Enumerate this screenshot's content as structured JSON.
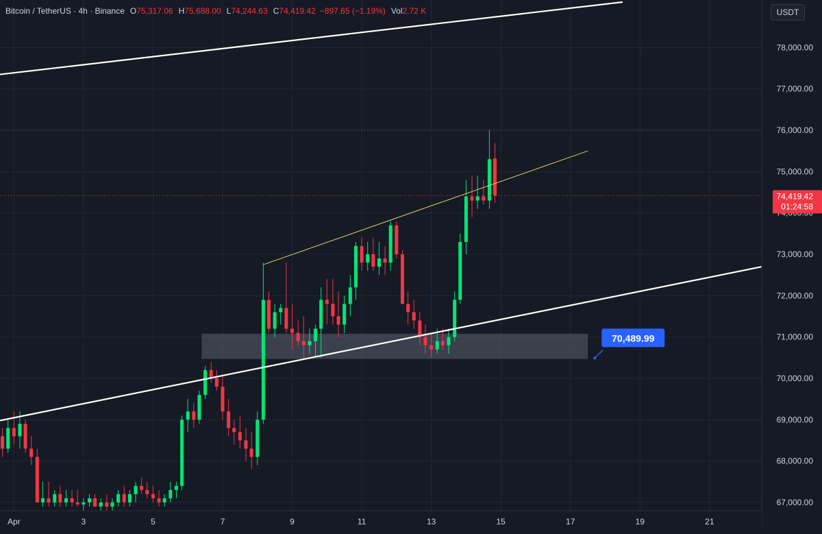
{
  "legend": {
    "symbol": "Bitcoin / TetherUS · 4h · Binance",
    "open_label": "O",
    "open": "75,317.06",
    "high_label": "H",
    "high": "75,688.00",
    "low_label": "L",
    "low": "74,244.63",
    "close_label": "C",
    "close": "74,419.42",
    "change": "−897.65 (−1.19%)",
    "vol_label": "Vol",
    "vol": "2.72 K"
  },
  "currency_button": "USDT",
  "price_tag": {
    "value": "74,419.42",
    "countdown": "01:24:58"
  },
  "price_callout": "70,489.99",
  "colors": {
    "background": "#161a25",
    "up": "#00e676",
    "down": "#f23645",
    "callout": "#2962ff",
    "channel": "#ffffff",
    "trendline": "#d8d06a",
    "zone": "#787b86"
  },
  "chart_data": {
    "type": "candlestick",
    "symbol": "BTCUSDT",
    "interval": "4h",
    "y_ticks": [
      "67,000.00",
      "68,000.00",
      "69,000.00",
      "70,000.00",
      "71,000.00",
      "72,000.00",
      "73,000.00",
      "74,000.00",
      "75,000.00",
      "76,000.00",
      "77,000.00",
      "78,000.00"
    ],
    "ylim": [
      66800,
      79150
    ],
    "x_ticks": [
      {
        "label": "Apr",
        "day": 1
      },
      {
        "label": "3",
        "day": 3
      },
      {
        "label": "5",
        "day": 5
      },
      {
        "label": "7",
        "day": 7
      },
      {
        "label": "9",
        "day": 9
      },
      {
        "label": "11",
        "day": 11
      },
      {
        "label": "13",
        "day": 13
      },
      {
        "label": "15",
        "day": 15
      },
      {
        "label": "17",
        "day": 17
      },
      {
        "label": "19",
        "day": 19
      },
      {
        "label": "21",
        "day": 21
      }
    ],
    "xlim_days": [
      0.6,
      22.5
    ],
    "last_price": 74419.42,
    "recent_high": 76000,
    "candles": [
      [
        0.17,
        67200,
        67900,
        66900,
        67500
      ],
      [
        0.33,
        67500,
        68200,
        67300,
        68000
      ],
      [
        0.5,
        68000,
        68900,
        67800,
        68600
      ],
      [
        0.67,
        68600,
        68800,
        68100,
        68300
      ],
      [
        0.83,
        68300,
        69000,
        68200,
        68800
      ],
      [
        1.0,
        68800,
        69200,
        68400,
        68600
      ],
      [
        1.17,
        68600,
        69200,
        68300,
        68900
      ],
      [
        1.33,
        68900,
        69000,
        68200,
        68300
      ],
      [
        1.5,
        68300,
        68600,
        67900,
        68100
      ],
      [
        1.67,
        68100,
        68300,
        67000,
        67000
      ],
      [
        1.83,
        67000,
        67500,
        66900,
        67100
      ],
      [
        2.0,
        67100,
        67500,
        66900,
        67000
      ],
      [
        2.17,
        67000,
        67300,
        66900,
        67200
      ],
      [
        2.33,
        67200,
        67400,
        66900,
        67000
      ],
      [
        2.5,
        67000,
        67300,
        66900,
        67100
      ],
      [
        2.67,
        67100,
        67300,
        66900,
        67000
      ],
      [
        2.83,
        67000,
        67300,
        66900,
        66950
      ],
      [
        3.0,
        66950,
        67100,
        66800,
        67000
      ],
      [
        3.17,
        67000,
        67200,
        66900,
        67100
      ],
      [
        3.33,
        67100,
        67200,
        66900,
        66900
      ],
      [
        3.5,
        66900,
        67100,
        66800,
        67000
      ],
      [
        3.67,
        67000,
        67200,
        66800,
        66900
      ],
      [
        3.83,
        66900,
        67100,
        66800,
        67000
      ],
      [
        4.0,
        67000,
        67300,
        66900,
        67200
      ],
      [
        4.17,
        67200,
        67400,
        66900,
        67000
      ],
      [
        4.33,
        67000,
        67300,
        66900,
        67200
      ],
      [
        4.5,
        67200,
        67500,
        67000,
        67400
      ],
      [
        4.67,
        67400,
        67600,
        67200,
        67300
      ],
      [
        4.83,
        67300,
        67500,
        67100,
        67200
      ],
      [
        5.0,
        67200,
        67400,
        67000,
        67100
      ],
      [
        5.17,
        67100,
        67300,
        66900,
        67000
      ],
      [
        5.33,
        67000,
        67200,
        66900,
        67100
      ],
      [
        5.5,
        67100,
        67500,
        67000,
        67300
      ],
      [
        5.67,
        67300,
        67500,
        67100,
        67400
      ],
      [
        5.83,
        67400,
        69100,
        67300,
        69000
      ],
      [
        6.0,
        69000,
        69500,
        68700,
        69200
      ],
      [
        6.17,
        69200,
        69400,
        68800,
        69000
      ],
      [
        6.33,
        69000,
        69700,
        68900,
        69600
      ],
      [
        6.5,
        69600,
        70300,
        69500,
        70200
      ],
      [
        6.67,
        70200,
        70400,
        69900,
        70000
      ],
      [
        6.83,
        70000,
        70200,
        69700,
        69800
      ],
      [
        7.0,
        69800,
        70100,
        69000,
        69200
      ],
      [
        7.17,
        69200,
        69500,
        68600,
        68800
      ],
      [
        7.33,
        68800,
        69000,
        68400,
        68700
      ],
      [
        7.5,
        68700,
        69100,
        68300,
        68500
      ],
      [
        7.67,
        68500,
        68800,
        68000,
        68300
      ],
      [
        7.83,
        68300,
        68700,
        67800,
        68100
      ],
      [
        8.0,
        68100,
        69200,
        67900,
        69000
      ],
      [
        8.17,
        69000,
        72800,
        68900,
        71900
      ],
      [
        8.33,
        71900,
        72100,
        71100,
        71200
      ],
      [
        8.5,
        71200,
        71800,
        71000,
        71600
      ],
      [
        8.67,
        71600,
        71800,
        71300,
        71700
      ],
      [
        8.83,
        71700,
        72800,
        71100,
        71200
      ],
      [
        9.0,
        71200,
        71800,
        70700,
        71100
      ],
      [
        9.17,
        71100,
        71400,
        70800,
        70900
      ],
      [
        9.33,
        70900,
        71500,
        70500,
        70800
      ],
      [
        9.5,
        70800,
        71200,
        70600,
        70900
      ],
      [
        9.67,
        70900,
        71300,
        70500,
        71200
      ],
      [
        9.83,
        71200,
        72200,
        70500,
        71900
      ],
      [
        10.0,
        71900,
        72400,
        71300,
        71800
      ],
      [
        10.17,
        71800,
        72400,
        71300,
        71500
      ],
      [
        10.33,
        71500,
        72100,
        71000,
        71300
      ],
      [
        10.5,
        71300,
        72000,
        71100,
        71800
      ],
      [
        10.67,
        71800,
        72500,
        71500,
        72200
      ],
      [
        10.83,
        72200,
        73300,
        71900,
        73200
      ],
      [
        11.0,
        73200,
        73400,
        72600,
        72800
      ],
      [
        11.17,
        72800,
        73300,
        72600,
        73000
      ],
      [
        11.33,
        73000,
        73400,
        72600,
        72700
      ],
      [
        11.5,
        72700,
        73300,
        72500,
        72900
      ],
      [
        11.67,
        72900,
        73200,
        72500,
        72800
      ],
      [
        11.83,
        72800,
        73800,
        72600,
        73700
      ],
      [
        12.0,
        73700,
        73800,
        72900,
        73000
      ],
      [
        12.17,
        73000,
        73100,
        71800,
        71800
      ],
      [
        12.33,
        71800,
        72100,
        71300,
        71600
      ],
      [
        12.5,
        71600,
        71900,
        71200,
        71400
      ],
      [
        12.67,
        71400,
        71600,
        70800,
        71000
      ],
      [
        12.83,
        71000,
        71300,
        70600,
        70800
      ],
      [
        13.0,
        70800,
        71100,
        70500,
        70700
      ],
      [
        13.17,
        70700,
        71200,
        70600,
        70900
      ],
      [
        13.33,
        70900,
        71200,
        70700,
        70800
      ],
      [
        13.5,
        70800,
        71200,
        70600,
        71000
      ],
      [
        13.67,
        71000,
        72100,
        70900,
        71900
      ],
      [
        13.83,
        71900,
        73500,
        71800,
        73300
      ],
      [
        14.0,
        73300,
        74800,
        73000,
        74400
      ],
      [
        14.17,
        74400,
        74900,
        73900,
        74300
      ],
      [
        14.33,
        74300,
        74900,
        74100,
        74400
      ],
      [
        14.5,
        74400,
        74800,
        74200,
        74300
      ],
      [
        14.67,
        74300,
        76000,
        74100,
        75300
      ],
      [
        14.83,
        75317.06,
        75688,
        74244.63,
        74419.42
      ]
    ],
    "drawings": {
      "channel_upper": [
        [
          0.6,
          77350
        ],
        [
          18.5,
          79100
        ]
      ],
      "channel_lower": [
        [
          0.6,
          68980
        ],
        [
          22.5,
          72700
        ]
      ],
      "trendline": [
        [
          8.17,
          72750
        ],
        [
          17.5,
          75500
        ]
      ],
      "support_zone": {
        "x0": 6.4,
        "x1": 17.5,
        "y0": 70470,
        "y1": 71080
      },
      "callout": {
        "day": 17.7,
        "price": 70489.99
      }
    }
  }
}
